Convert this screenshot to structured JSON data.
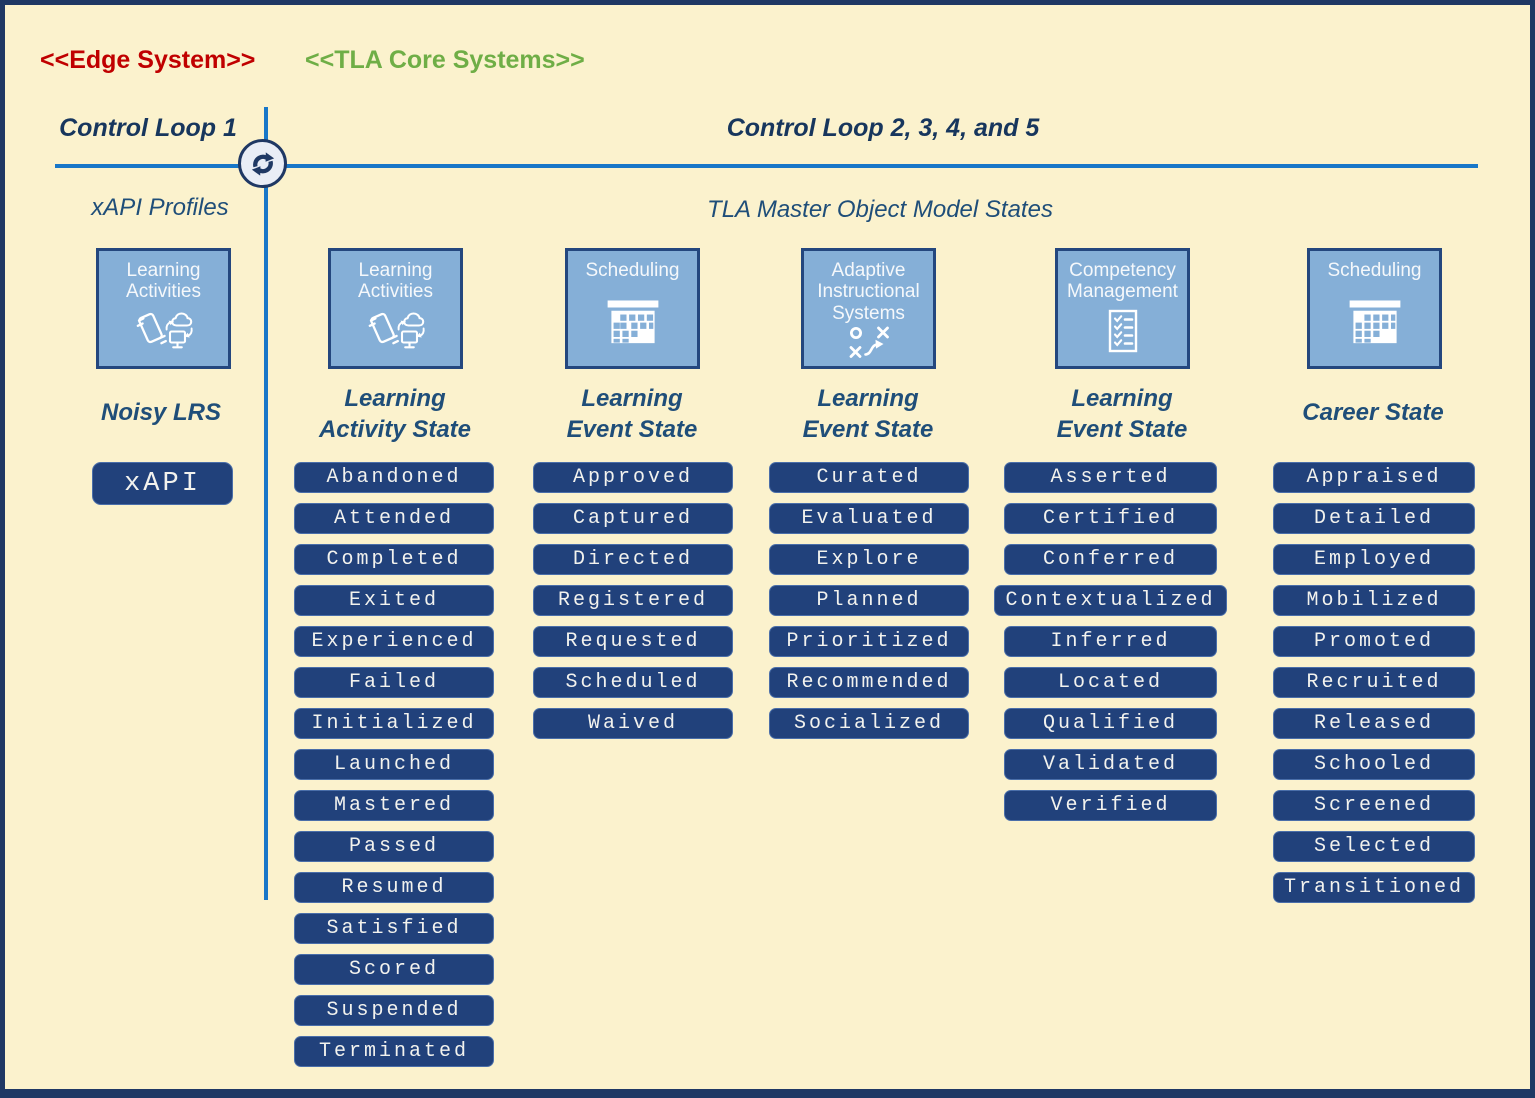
{
  "colors": {
    "background": "#FBF2CD",
    "frame_border": "#1F3864",
    "loop_line_blue": "#1877C8",
    "heading_navy": "#17365D",
    "label_steel_blue": "#1F4E79",
    "icon_box_fill": "#85AFD7",
    "icon_box_border": "#24477E",
    "state_button_fill": "#21417B",
    "state_button_text": "#F2F2EE",
    "edge_stereotype_red": "#C00000",
    "core_stereotype_green": "#6FAE46"
  },
  "stereotypes": {
    "edge_system": "<<Edge System>>",
    "tla_core_systems": "<<TLA Core Systems>>"
  },
  "loops": {
    "loop1": "Control Loop 1",
    "loop2345": "Control Loop 2, 3, 4, and 5"
  },
  "sections": {
    "xapi_profiles": "xAPI Profiles",
    "mom_states": "TLA Master Object Model States"
  },
  "edge_column": {
    "icon_box_label": "Learning\nActivities",
    "icon": "learning-activities-icon",
    "system_label": "Noisy LRS",
    "api_button": "xAPI"
  },
  "columns": [
    {
      "icon_box_label": "Learning\nActivities",
      "icon": "learning-activities-icon",
      "title": "Learning\nActivity State",
      "states": [
        "Abandoned",
        "Attended",
        "Completed",
        "Exited",
        "Experienced",
        "Failed",
        "Initialized",
        "Launched",
        "Mastered",
        "Passed",
        "Resumed",
        "Satisfied",
        "Scored",
        "Suspended",
        "Terminated"
      ]
    },
    {
      "icon_box_label": "Scheduling",
      "icon": "calendar-icon",
      "title": "Learning\nEvent State",
      "states": [
        "Approved",
        "Captured",
        "Directed",
        "Registered",
        "Requested",
        "Scheduled",
        "Waived"
      ]
    },
    {
      "icon_box_label": "Adaptive\nInstructional\nSystems",
      "icon": "strategy-icon",
      "title": "Learning\nEvent State",
      "states": [
        "Curated",
        "Evaluated",
        "Explore",
        "Planned",
        "Prioritized",
        "Recommended",
        "Socialized"
      ]
    },
    {
      "icon_box_label": "Competency\nManagement",
      "icon": "checklist-icon",
      "title": "Learning\nEvent State",
      "states": [
        "Asserted",
        "Certified",
        "Conferred",
        "Contextualized",
        "Inferred",
        "Located",
        "Qualified",
        "Validated",
        "Verified"
      ]
    },
    {
      "icon_box_label": "Scheduling",
      "icon": "calendar-icon",
      "title": "Career State",
      "states": [
        "Appraised",
        "Detailed",
        "Employed",
        "Mobilized",
        "Promoted",
        "Recruited",
        "Released",
        "Schooled",
        "Screened",
        "Selected",
        "Transitioned"
      ]
    }
  ]
}
